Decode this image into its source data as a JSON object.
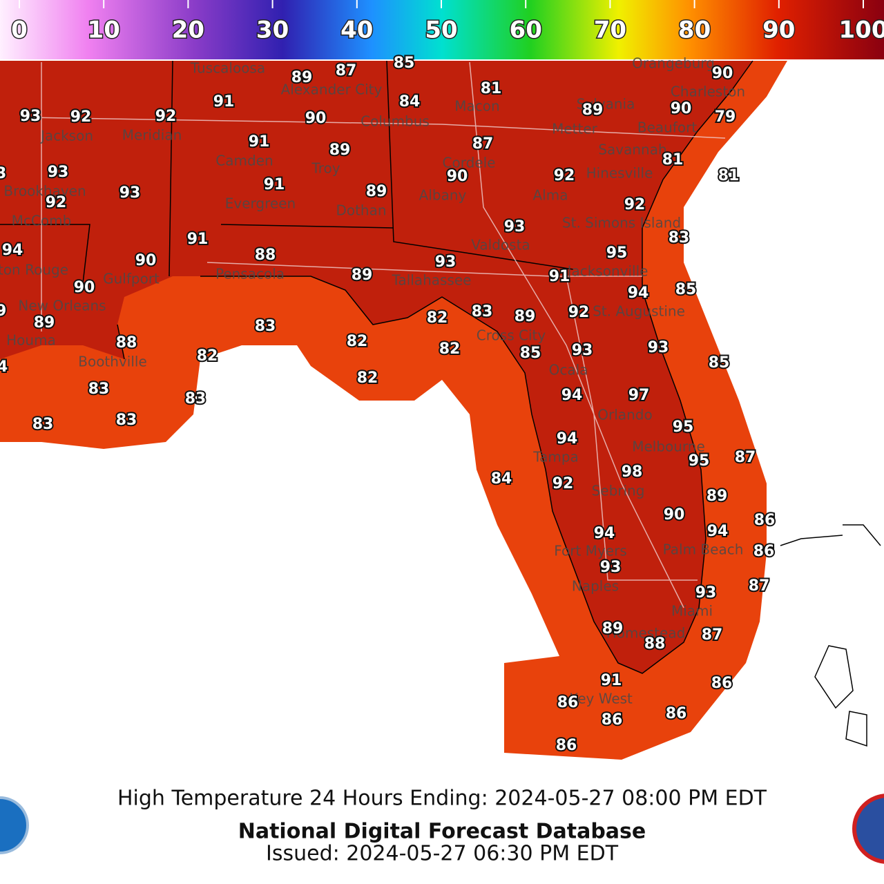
{
  "colorbar": {
    "ticks": [
      0,
      10,
      20,
      30,
      40,
      50,
      60,
      70,
      80,
      90,
      100
    ]
  },
  "cities": [
    "Orangeburg",
    "Tuscaloosa",
    "Alexander City",
    "Charleston",
    "Sylvania",
    "Macon",
    "Columbus",
    "Jackson",
    "Meridian",
    "Metter",
    "Beaufort",
    "Savannah",
    "Camden",
    "Troy",
    "Cordele",
    "Hinesville",
    "Brookhaven",
    "Albany",
    "Alma",
    "Evergreen",
    "Dothan",
    "McComb",
    "St. Simons Island",
    "Valdosta",
    "Jacksonville",
    "Baton Rouge",
    "Gulfport",
    "Pensacola",
    "Tallahassee",
    "New Orleans",
    "St. Augustine",
    "Houma",
    "Cross City",
    "Boothville",
    "Ocala",
    "Orlando",
    "Melbourne",
    "Tampa",
    "Sebring",
    "Fort Myers",
    "Palm Beach",
    "Naples",
    "Miami",
    "Homestead",
    "Key West"
  ],
  "temperatures": [
    85,
    89,
    87,
    90,
    81,
    84,
    91,
    93,
    92,
    92,
    90,
    89,
    90,
    79,
    91,
    89,
    87,
    81,
    93,
    93,
    90,
    92,
    81,
    91,
    89,
    93,
    92,
    92,
    93,
    83,
    91,
    94,
    95,
    88,
    90,
    93,
    89,
    91,
    90,
    94,
    85,
    89,
    89,
    82,
    83,
    89,
    92,
    83,
    88,
    82,
    82,
    85,
    93,
    93,
    84,
    82,
    85,
    83,
    82,
    83,
    94,
    97,
    83,
    83,
    95,
    94,
    95,
    87,
    84,
    98,
    92,
    89,
    90,
    86,
    94,
    94,
    86,
    93,
    93,
    87,
    89,
    88,
    87,
    91,
    86,
    86,
    86,
    86,
    86
  ],
  "footer": {
    "title": "High Temperature 24 Hours Ending: 2024-05-27 08:00 PM EDT",
    "product": "National Digital Forecast Database",
    "issued": "Issued: 2024-05-27 06:30 PM EDT"
  }
}
